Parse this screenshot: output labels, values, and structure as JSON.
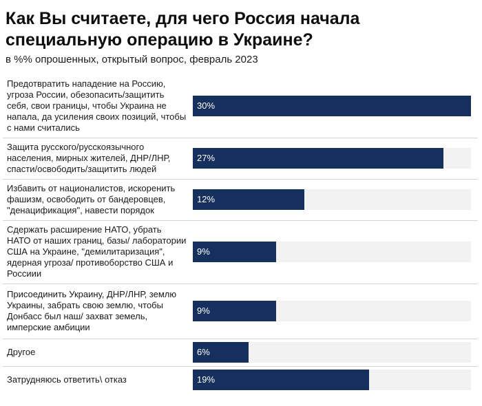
{
  "chart_data": {
    "type": "bar",
    "orientation": "horizontal",
    "title": "Как Вы считаете, для чего Россия начала специальную операцию в Украине?",
    "subtitle": "в %% опрошенных, открытый вопрос, февраль 2023",
    "unit": "%",
    "xlim": [
      0,
      30
    ],
    "grid": false,
    "legend": "none",
    "bar_color": "#16305e",
    "track_color": "#f2f2f2",
    "categories": [
      "Предотвратить нападение на Россию, угроза России, обезопасить/защитить себя, свои границы, чтобы Украина не напала, да усиления своих позиций, чтобы с нами считались",
      "Защита русского/русскоязычного населения, мирных жителей, ДНР/ЛНР, спасти/освободить/защитить людей",
      "Избавить от националистов, искоренить фашизм, освободить от бандеровцев, \"денацификация\", навести порядок",
      "Сдержать расширение НАТО, убрать НАТО от наших границ, базы/ лаборатории США на Украине, \"демилитаризация\", ядерная угроза/ противоборство США и Россиии",
      "Присоединить Украину, ДНР/ЛНР, землю Украины, забрать свою землю, чтобы Донбасс был наш/ захват земель, имперские амбиции",
      "Другое",
      "Затрудняюсь ответить\\ отказ"
    ],
    "values": [
      30,
      27,
      12,
      9,
      9,
      6,
      19
    ],
    "value_labels": [
      "30%",
      "27%",
      "12%",
      "9%",
      "9%",
      "6%",
      "19%"
    ]
  }
}
